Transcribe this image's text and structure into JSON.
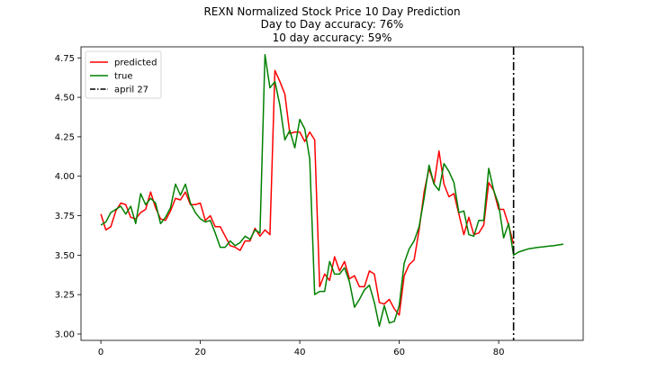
{
  "chart_data": {
    "type": "line",
    "title_lines": [
      "REXN Normalized Stock Price 10 Day Prediction",
      "Day to Day accuracy: 76%",
      "10 day accuracy: 59%"
    ],
    "xlabel": "",
    "ylabel": "",
    "xlim": [
      -4,
      97
    ],
    "ylim": [
      2.96,
      4.82
    ],
    "x_ticks": [
      0,
      20,
      40,
      60,
      80
    ],
    "y_ticks": [
      3.0,
      3.25,
      3.5,
      3.75,
      4.0,
      4.25,
      4.5,
      4.75
    ],
    "grid": false,
    "legend_position": "top-left",
    "series": [
      {
        "name": "predicted",
        "color": "#ff0000",
        "x": [
          0,
          1,
          2,
          3,
          4,
          5,
          6,
          7,
          8,
          9,
          10,
          11,
          12,
          13,
          14,
          15,
          16,
          17,
          18,
          19,
          20,
          21,
          22,
          23,
          24,
          25,
          26,
          27,
          28,
          29,
          30,
          31,
          32,
          33,
          34,
          35,
          36,
          37,
          38,
          39,
          40,
          41,
          42,
          43,
          44,
          45,
          46,
          47,
          48,
          49,
          50,
          51,
          52,
          53,
          54,
          55,
          56,
          57,
          58,
          59,
          60,
          61,
          62,
          63,
          64,
          65,
          66,
          67,
          68,
          69,
          70,
          71,
          72,
          73,
          74,
          75,
          76,
          77,
          78,
          79,
          80,
          81,
          82,
          83
        ],
        "values": [
          3.76,
          3.66,
          3.68,
          3.78,
          3.83,
          3.82,
          3.74,
          3.73,
          3.77,
          3.79,
          3.9,
          3.8,
          3.73,
          3.72,
          3.78,
          3.86,
          3.85,
          3.9,
          3.82,
          3.82,
          3.83,
          3.72,
          3.75,
          3.68,
          3.68,
          3.62,
          3.56,
          3.55,
          3.53,
          3.59,
          3.59,
          3.67,
          3.62,
          3.66,
          3.63,
          4.67,
          4.6,
          4.52,
          4.27,
          4.28,
          4.28,
          4.22,
          4.28,
          4.23,
          3.3,
          3.38,
          3.34,
          3.49,
          3.4,
          3.46,
          3.35,
          3.37,
          3.3,
          3.3,
          3.4,
          3.38,
          3.2,
          3.19,
          3.22,
          3.16,
          3.12,
          3.37,
          3.44,
          3.47,
          3.66,
          3.9,
          4.05,
          3.95,
          4.16,
          3.95,
          3.87,
          3.89,
          3.76,
          3.63,
          3.74,
          3.63,
          3.64,
          3.69,
          3.96,
          3.91,
          3.79,
          3.79,
          3.69,
          3.57
        ]
      },
      {
        "name": "true",
        "color": "#008000",
        "x": [
          0,
          1,
          2,
          3,
          4,
          5,
          6,
          7,
          8,
          9,
          10,
          11,
          12,
          13,
          14,
          15,
          16,
          17,
          18,
          19,
          20,
          21,
          22,
          23,
          24,
          25,
          26,
          27,
          28,
          29,
          30,
          31,
          32,
          33,
          34,
          35,
          36,
          37,
          38,
          39,
          40,
          41,
          42,
          43,
          44,
          45,
          46,
          47,
          48,
          49,
          50,
          51,
          52,
          53,
          54,
          55,
          56,
          57,
          58,
          59,
          60,
          61,
          62,
          63,
          64,
          65,
          66,
          67,
          68,
          69,
          70,
          71,
          72,
          73,
          74,
          75,
          76,
          77,
          78,
          79,
          80,
          81,
          82,
          83,
          84,
          85,
          86,
          87,
          88,
          89,
          90,
          91,
          92,
          93
        ],
        "values": [
          3.69,
          3.71,
          3.77,
          3.79,
          3.81,
          3.76,
          3.81,
          3.7,
          3.89,
          3.82,
          3.86,
          3.83,
          3.7,
          3.74,
          3.8,
          3.95,
          3.88,
          3.95,
          3.83,
          3.77,
          3.73,
          3.71,
          3.72,
          3.64,
          3.55,
          3.55,
          3.59,
          3.56,
          3.58,
          3.62,
          3.6,
          3.66,
          3.64,
          4.77,
          4.56,
          4.6,
          4.45,
          4.23,
          4.29,
          4.18,
          4.36,
          4.3,
          4.11,
          3.25,
          3.27,
          3.27,
          3.46,
          3.38,
          3.38,
          3.42,
          3.33,
          3.17,
          3.22,
          3.28,
          3.31,
          3.2,
          3.05,
          3.18,
          3.07,
          3.08,
          3.18,
          3.45,
          3.54,
          3.59,
          3.68,
          3.86,
          4.07,
          3.95,
          3.91,
          4.08,
          4.03,
          3.96,
          3.77,
          3.78,
          3.63,
          3.62,
          3.72,
          3.72,
          4.05,
          3.91,
          3.82,
          3.61,
          3.7,
          3.5,
          3.52,
          3.53,
          3.54,
          3.545,
          3.55,
          3.553,
          3.557,
          3.56,
          3.565,
          3.57
        ]
      }
    ],
    "vline": {
      "name": "april 27",
      "x": 83,
      "color": "#000000",
      "style": "dash-dot"
    }
  }
}
